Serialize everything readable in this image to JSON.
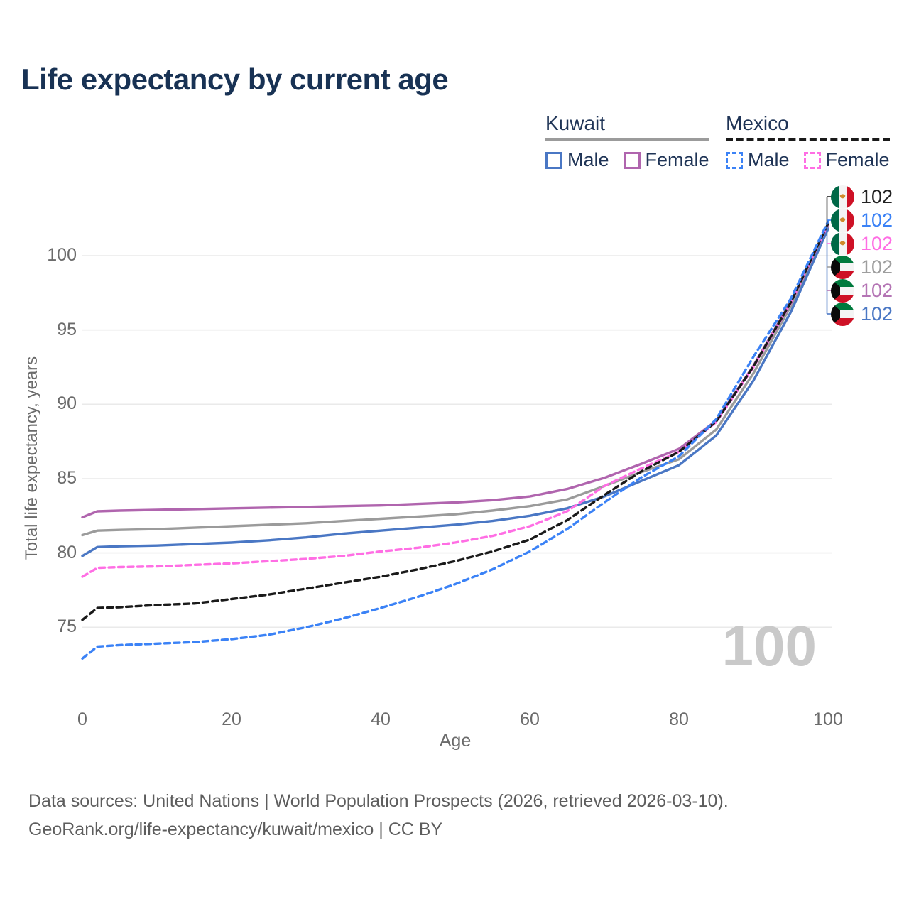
{
  "title": "Life expectancy by current age",
  "watermark": "100",
  "legend": {
    "groups": [
      {
        "country": "Kuwait",
        "line_color": "#9b9b9b",
        "dashed": false,
        "items": [
          {
            "label": "Male",
            "color": "#4a77c4",
            "dashed": false
          },
          {
            "label": "Female",
            "color": "#b065ae",
            "dashed": false
          }
        ]
      },
      {
        "country": "Mexico",
        "line_color": "#1a1a1a",
        "dashed": true,
        "items": [
          {
            "label": "Male",
            "color": "#3b82f6",
            "dashed": true
          },
          {
            "label": "Female",
            "color": "#ff6ee4",
            "dashed": true
          }
        ]
      }
    ]
  },
  "footer": {
    "line1": "Data sources: United Nations | World Population Prospects (2026, retrieved 2026-03-10).",
    "line2": "GeoRank.org/life-expectancy/kuwait/mexico | CC BY"
  },
  "chart_data": {
    "type": "line",
    "title": "Life expectancy by current age",
    "xlabel": "Age",
    "ylabel": "Total life expectancy, years",
    "xlim": [
      0,
      100
    ],
    "ylim": [
      72,
      103
    ],
    "xticks": [
      0,
      20,
      40,
      60,
      80,
      100
    ],
    "yticks": [
      75,
      80,
      85,
      90,
      95,
      100
    ],
    "grid": "horizontal",
    "legend_position": "top-right",
    "hover_age": "100",
    "x": [
      0,
      2,
      5,
      10,
      15,
      20,
      25,
      30,
      35,
      40,
      45,
      50,
      55,
      60,
      65,
      70,
      75,
      80,
      85,
      90,
      95,
      100
    ],
    "series": [
      {
        "id": "kuwait-female",
        "name": "Kuwait Female",
        "country": "Kuwait",
        "sex": "Female",
        "flag": "kuwait",
        "color": "#b065ae",
        "dashed": false,
        "values": [
          82.4,
          82.8,
          82.85,
          82.9,
          82.95,
          83.0,
          83.05,
          83.1,
          83.15,
          83.2,
          83.3,
          83.4,
          83.55,
          83.8,
          84.3,
          85.05,
          86.0,
          87.0,
          88.9,
          92.6,
          96.9,
          102.0
        ]
      },
      {
        "id": "kuwait-total",
        "name": "Kuwait Total",
        "country": "Kuwait",
        "sex": "Total",
        "flag": "kuwait",
        "color": "#9b9b9b",
        "dashed": false,
        "values": [
          81.2,
          81.5,
          81.55,
          81.6,
          81.7,
          81.8,
          81.9,
          82.0,
          82.15,
          82.3,
          82.45,
          82.6,
          82.85,
          83.15,
          83.6,
          84.5,
          85.45,
          86.3,
          88.3,
          92.1,
          96.6,
          101.9
        ]
      },
      {
        "id": "kuwait-male",
        "name": "Kuwait Male",
        "country": "Kuwait",
        "sex": "Male",
        "flag": "kuwait",
        "color": "#4a77c4",
        "dashed": false,
        "values": [
          79.8,
          80.4,
          80.45,
          80.5,
          80.6,
          80.7,
          80.85,
          81.05,
          81.3,
          81.5,
          81.7,
          81.9,
          82.15,
          82.5,
          83.0,
          83.8,
          84.85,
          85.9,
          87.9,
          91.6,
          96.2,
          101.8
        ]
      },
      {
        "id": "mexico-female",
        "name": "Mexico Female",
        "country": "Mexico",
        "sex": "Female",
        "flag": "mexico",
        "color": "#ff6ee4",
        "dashed": true,
        "values": [
          78.4,
          79.0,
          79.05,
          79.1,
          79.2,
          79.3,
          79.45,
          79.6,
          79.8,
          80.1,
          80.35,
          80.7,
          81.15,
          81.8,
          82.8,
          84.5,
          85.7,
          86.8,
          88.8,
          92.5,
          96.8,
          102.1
        ]
      },
      {
        "id": "mexico-total",
        "name": "Mexico Total",
        "country": "Mexico",
        "sex": "Total",
        "flag": "mexico",
        "color": "#1a1a1a",
        "dashed": true,
        "values": [
          75.5,
          76.3,
          76.35,
          76.5,
          76.6,
          76.9,
          77.2,
          77.6,
          78.0,
          78.4,
          78.9,
          79.45,
          80.1,
          80.9,
          82.2,
          83.9,
          85.5,
          86.8,
          88.85,
          92.55,
          96.85,
          102.15
        ]
      },
      {
        "id": "mexico-male",
        "name": "Mexico Male",
        "country": "Mexico",
        "sex": "Male",
        "flag": "mexico",
        "color": "#3b82f6",
        "dashed": true,
        "values": [
          72.9,
          73.7,
          73.8,
          73.9,
          74.0,
          74.2,
          74.5,
          75.0,
          75.6,
          76.3,
          77.05,
          77.9,
          78.9,
          80.1,
          81.6,
          83.4,
          85.1,
          86.5,
          89.0,
          93.2,
          97.1,
          102.3
        ]
      }
    ],
    "end_labels": [
      {
        "series": "mexico-total",
        "flag": "mexico",
        "color": "#222222",
        "value": "102"
      },
      {
        "series": "mexico-male",
        "flag": "mexico",
        "color": "#3b82f6",
        "value": "102"
      },
      {
        "series": "mexico-female",
        "flag": "mexico",
        "color": "#ff6ee4",
        "value": "102"
      },
      {
        "series": "kuwait-total",
        "flag": "kuwait",
        "color": "#9e9e9e",
        "value": "102"
      },
      {
        "series": "kuwait-female",
        "flag": "kuwait",
        "color": "#b474b4",
        "value": "102"
      },
      {
        "series": "kuwait-male",
        "flag": "kuwait",
        "color": "#4a77c4",
        "value": "102"
      }
    ]
  }
}
